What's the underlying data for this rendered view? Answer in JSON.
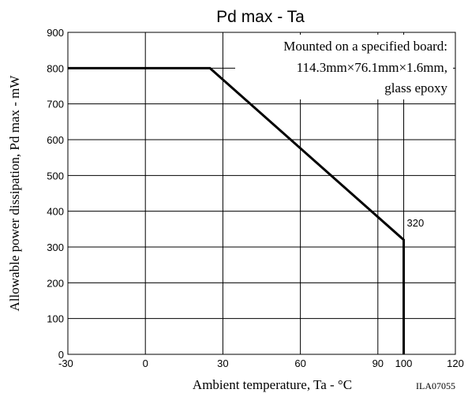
{
  "chart_data": {
    "type": "line",
    "title": "Pd max - Ta",
    "xlabel": "Ambient temperature, Ta - °C",
    "ylabel": "Allowable power dissipation, Pd max - mW",
    "xlim": [
      -30,
      120
    ],
    "ylim": [
      0,
      900
    ],
    "xticks": [
      -30,
      0,
      30,
      60,
      90,
      100,
      120
    ],
    "yticks": [
      0,
      100,
      200,
      300,
      400,
      500,
      600,
      700,
      800,
      900
    ],
    "grid": true,
    "series": [
      {
        "x": [
          -30,
          25,
          100,
          100
        ],
        "y": [
          800,
          800,
          320,
          0
        ]
      }
    ],
    "annotations": [
      {
        "text": "320",
        "x": 100,
        "y": 320
      }
    ],
    "note_lines": [
      "Mounted on a specified board:",
      "114.3mm×76.1mm×1.6mm,",
      "glass epoxy"
    ],
    "code": "ILA07055"
  }
}
